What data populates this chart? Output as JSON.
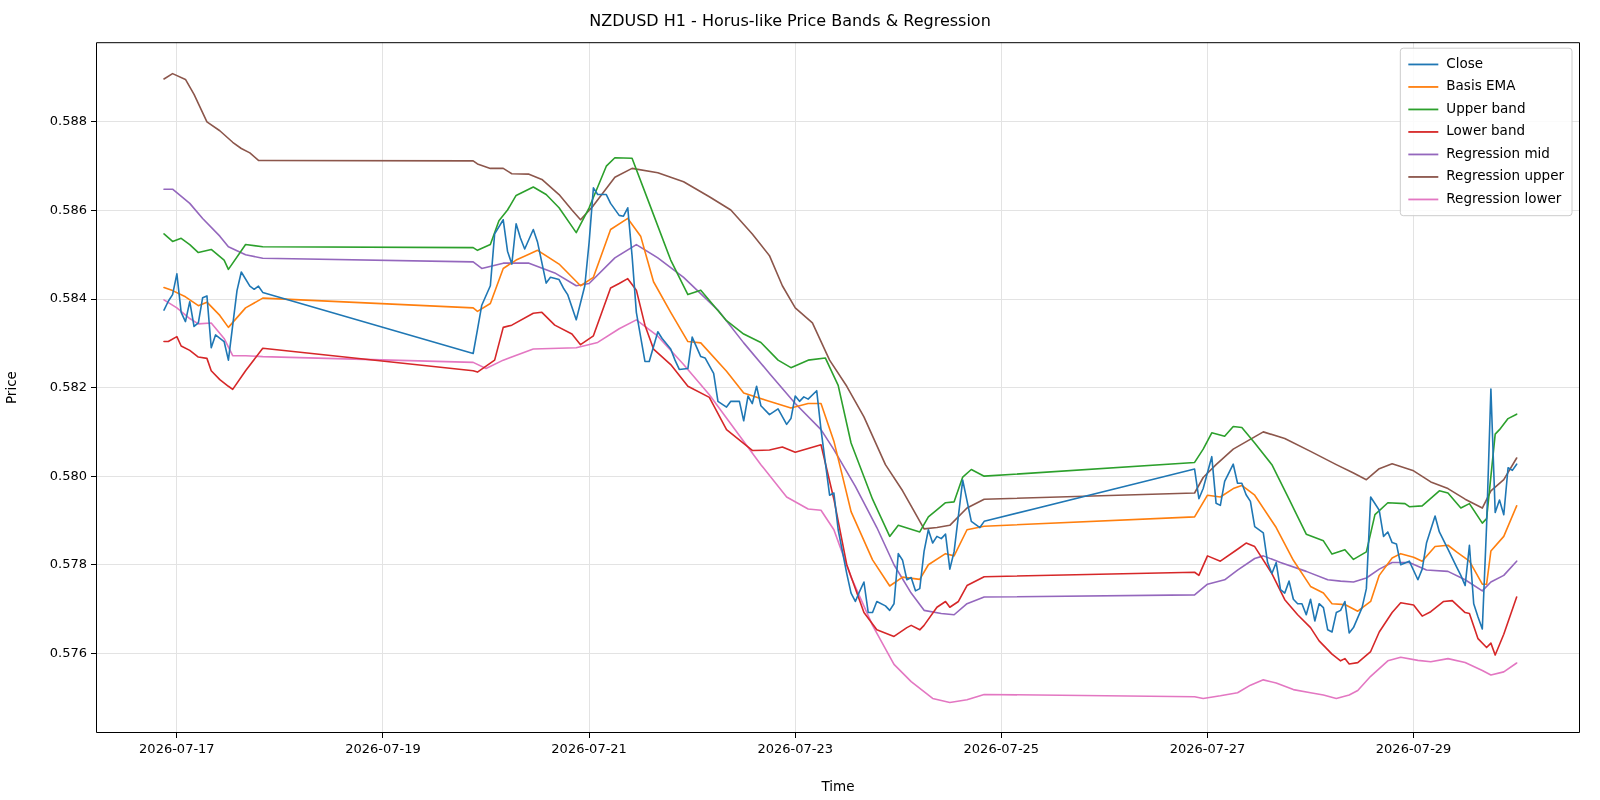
{
  "chart_data": {
    "type": "line",
    "title": "NZDUSD H1 - Horus-like Price Bands & Regression",
    "xlabel": "Time",
    "ylabel": "Price",
    "xlim": [
      "2026-07-16T05:10",
      "2026-07-30T14:45"
    ],
    "xticks": [
      "2026-07-17",
      "2026-07-19",
      "2026-07-21",
      "2026-07-23",
      "2026-07-25",
      "2026-07-27",
      "2026-07-29"
    ],
    "ylim": [
      0.5742,
      0.5898
    ],
    "yticks": [
      0.576,
      0.578,
      {
        "value": 0.58,
        "label": "0.580"
      },
      0.582,
      0.584,
      0.586,
      0.588
    ],
    "grid": true,
    "legend": "top right",
    "marker": "none",
    "line_style": "solid",
    "series": [
      {
        "name": "Close",
        "color": "#1f77b4",
        "x": [
          "2026-07-16T21:00",
          "2026-07-16T22:00",
          "2026-07-16T23:00",
          "2026-07-17T00:00",
          "2026-07-17T01:00",
          "2026-07-17T02:00",
          "2026-07-17T03:00",
          "2026-07-17T04:00",
          "2026-07-17T05:00",
          "2026-07-17T06:00",
          "2026-07-17T07:00",
          "2026-07-17T08:00",
          "2026-07-17T09:00",
          "2026-07-17T11:00",
          "2026-07-17T12:00",
          "2026-07-17T14:00",
          "2026-07-17T15:00",
          "2026-07-17T17:00",
          "2026-07-17T18:00",
          "2026-07-17T19:00",
          "2026-07-17T20:00",
          "2026-07-19T21:00",
          "2026-07-19T22:00",
          "2026-07-19T23:00",
          "2026-07-20T01:00",
          "2026-07-20T02:00",
          "2026-07-20T04:00",
          "2026-07-20T05:00",
          "2026-07-20T06:00",
          "2026-07-20T07:00",
          "2026-07-20T08:00",
          "2026-07-20T09:00",
          "2026-07-20T11:00",
          "2026-07-20T12:00",
          "2026-07-20T14:00",
          "2026-07-20T15:00",
          "2026-07-20T17:00",
          "2026-07-20T18:00",
          "2026-07-20T19:00",
          "2026-07-20T21:00",
          "2026-07-20T23:00",
          "2026-07-21T00:00",
          "2026-07-21T01:00",
          "2026-07-21T02:00",
          "2026-07-21T04:00",
          "2026-07-21T05:00",
          "2026-07-21T07:00",
          "2026-07-21T08:00",
          "2026-07-21T09:00",
          "2026-07-21T10:00",
          "2026-07-21T11:00",
          "2026-07-21T13:00",
          "2026-07-21T14:00",
          "2026-07-21T16:00",
          "2026-07-21T17:00",
          "2026-07-21T19:00",
          "2026-07-21T20:00",
          "2026-07-21T21:00",
          "2026-07-21T23:00",
          "2026-07-22T00:00",
          "2026-07-22T02:00",
          "2026-07-22T03:00",
          "2026-07-22T05:00",
          "2026-07-22T06:00",
          "2026-07-22T08:00",
          "2026-07-22T09:00",
          "2026-07-22T11:00",
          "2026-07-22T12:00",
          "2026-07-22T13:00",
          "2026-07-22T14:00",
          "2026-07-22T15:00",
          "2026-07-22T16:00",
          "2026-07-22T18:00",
          "2026-07-22T20:00",
          "2026-07-22T22:00",
          "2026-07-22T23:00",
          "2026-07-23T00:00",
          "2026-07-23T01:00",
          "2026-07-23T02:00",
          "2026-07-23T03:00",
          "2026-07-23T05:00",
          "2026-07-23T06:00",
          "2026-07-23T08:00",
          "2026-07-23T09:00",
          "2026-07-23T10:00",
          "2026-07-23T12:00",
          "2026-07-23T13:00",
          "2026-07-23T14:00",
          "2026-07-23T15:00",
          "2026-07-23T16:00",
          "2026-07-23T17:00",
          "2026-07-23T18:00",
          "2026-07-23T19:00",
          "2026-07-23T21:00",
          "2026-07-23T22:00",
          "2026-07-23T23:00",
          "2026-07-24T00:00",
          "2026-07-24T01:00",
          "2026-07-24T02:00",
          "2026-07-24T03:00",
          "2026-07-24T04:00",
          "2026-07-24T05:00",
          "2026-07-24T06:00",
          "2026-07-24T07:00",
          "2026-07-24T08:00",
          "2026-07-24T09:00",
          "2026-07-24T10:00",
          "2026-07-24T11:00",
          "2026-07-24T12:00",
          "2026-07-24T13:00",
          "2026-07-24T15:00",
          "2026-07-24T17:00",
          "2026-07-24T19:00",
          "2026-07-24T20:00",
          "2026-07-26T21:00",
          "2026-07-26T22:00",
          "2026-07-26T23:00",
          "2026-07-27T01:00",
          "2026-07-27T02:00",
          "2026-07-27T03:00",
          "2026-07-27T04:00",
          "2026-07-27T06:00",
          "2026-07-27T07:00",
          "2026-07-27T08:00",
          "2026-07-27T09:00",
          "2026-07-27T10:00",
          "2026-07-27T11:00",
          "2026-07-27T13:00",
          "2026-07-27T14:00",
          "2026-07-27T15:00",
          "2026-07-27T16:00",
          "2026-07-27T17:00",
          "2026-07-27T18:00",
          "2026-07-27T19:00",
          "2026-07-27T20:00",
          "2026-07-27T21:00",
          "2026-07-27T22:00",
          "2026-07-27T23:00",
          "2026-07-28T00:00",
          "2026-07-28T01:00",
          "2026-07-28T02:00",
          "2026-07-28T03:00",
          "2026-07-28T04:00",
          "2026-07-28T05:00",
          "2026-07-28T06:00",
          "2026-07-28T07:00",
          "2026-07-28T08:00",
          "2026-07-28T09:00",
          "2026-07-28T10:00",
          "2026-07-28T12:00",
          "2026-07-28T13:00",
          "2026-07-28T14:00",
          "2026-07-28T16:00",
          "2026-07-28T17:00",
          "2026-07-28T18:00",
          "2026-07-28T19:00",
          "2026-07-28T20:00",
          "2026-07-28T21:00",
          "2026-07-28T23:00",
          "2026-07-29T01:00",
          "2026-07-29T02:00",
          "2026-07-29T03:00",
          "2026-07-29T05:00",
          "2026-07-29T06:00",
          "2026-07-29T08:00",
          "2026-07-29T10:00",
          "2026-07-29T11:00",
          "2026-07-29T12:00",
          "2026-07-29T13:00",
          "2026-07-29T14:00",
          "2026-07-29T15:00",
          "2026-07-29T16:00",
          "2026-07-29T17:00",
          "2026-07-29T18:00",
          "2026-07-29T19:00",
          "2026-07-29T20:00",
          "2026-07-29T21:00",
          "2026-07-29T22:00",
          "2026-07-29T23:00",
          "2026-07-30T00:00"
        ],
        "values": [
          0.58375,
          0.58395,
          0.5841,
          0.58457,
          0.5837,
          0.58349,
          0.58394,
          0.58338,
          0.58346,
          0.58403,
          0.58407,
          0.5829,
          0.58319,
          0.58304,
          0.58262,
          0.58419,
          0.58461,
          0.58429,
          0.58422,
          0.58429,
          0.58415,
          0.58277,
          0.58331,
          0.58386,
          0.5843,
          0.58547,
          0.58579,
          0.58508,
          0.58479,
          0.5857,
          0.58538,
          0.58513,
          0.58557,
          0.58528,
          0.58436,
          0.58449,
          0.58444,
          0.58425,
          0.5841,
          0.58353,
          0.5843,
          0.58528,
          0.58651,
          0.58636,
          0.58636,
          0.58616,
          0.58589,
          0.58587,
          0.58606,
          0.58498,
          0.5837,
          0.58259,
          0.58259,
          0.58326,
          0.58311,
          0.58287,
          0.58262,
          0.58241,
          0.58243,
          0.58314,
          0.5827,
          0.58267,
          0.58232,
          0.58169,
          0.58156,
          0.58169,
          0.58169,
          0.58125,
          0.58181,
          0.58164,
          0.58203,
          0.58159,
          0.58139,
          0.58152,
          0.58117,
          0.5813,
          0.58181,
          0.58169,
          0.58179,
          0.58174,
          0.58193,
          0.58105,
          0.57957,
          0.57962,
          0.57879,
          0.5778,
          0.57736,
          0.57717,
          0.5774,
          0.57761,
          0.57692,
          0.57692,
          0.57717,
          0.57707,
          0.57697,
          0.57712,
          0.57825,
          0.5781,
          0.57766,
          0.57771,
          0.57741,
          0.57746,
          0.5783,
          0.57879,
          0.57849,
          0.57864,
          0.57859,
          0.57869,
          0.5779,
          0.5783,
          0.57991,
          0.57898,
          0.57884,
          0.57898,
          0.58016,
          0.57949,
          0.57972,
          0.58044,
          0.57939,
          0.57934,
          0.57988,
          0.58027,
          0.57984,
          0.57984,
          0.57958,
          0.57943,
          0.57886,
          0.57872,
          0.57805,
          0.5778,
          0.57805,
          0.57744,
          0.57736,
          0.57763,
          0.57722,
          0.57712,
          0.57712,
          0.57687,
          0.57722,
          0.57673,
          0.57712,
          0.57703,
          0.57653,
          0.57648,
          0.57692,
          0.57697,
          0.57717,
          0.57646,
          0.57658,
          0.57703,
          0.57746,
          0.57953,
          0.57923,
          0.57864,
          0.57874,
          0.5785,
          0.57847,
          0.578,
          0.57808,
          0.57766,
          0.5779,
          0.57849,
          0.5791,
          0.57874,
          0.57835,
          0.57795,
          0.57776,
          0.57753,
          0.57844,
          0.57712,
          0.57682,
          0.57655,
          0.57889,
          0.58197,
          0.57918,
          0.57946,
          0.57913,
          0.58019,
          0.58013,
          0.58027
        ]
      },
      {
        "name": "Basis EMA",
        "color": "#ff7f0e",
        "x": [
          "2026-07-16T21:00",
          "2026-07-16T23:00",
          "2026-07-17T02:00",
          "2026-07-17T05:00",
          "2026-07-17T07:00",
          "2026-07-17T10:00",
          "2026-07-17T12:00",
          "2026-07-17T16:00",
          "2026-07-17T20:00",
          "2026-07-19T21:00",
          "2026-07-19T22:00",
          "2026-07-20T01:00",
          "2026-07-20T04:00",
          "2026-07-20T07:00",
          "2026-07-20T12:00",
          "2026-07-20T17:00",
          "2026-07-20T22:00",
          "2026-07-21T01:00",
          "2026-07-21T05:00",
          "2026-07-21T09:00",
          "2026-07-21T12:00",
          "2026-07-21T15:00",
          "2026-07-21T19:00",
          "2026-07-21T23:00",
          "2026-07-22T02:00",
          "2026-07-22T08:00",
          "2026-07-22T12:00",
          "2026-07-22T17:00",
          "2026-07-22T23:00",
          "2026-07-23T03:00",
          "2026-07-23T06:00",
          "2026-07-23T09:00",
          "2026-07-23T11:00",
          "2026-07-23T13:00",
          "2026-07-23T18:00",
          "2026-07-23T22:00",
          "2026-07-24T01:00",
          "2026-07-24T05:00",
          "2026-07-24T07:00",
          "2026-07-24T11:00",
          "2026-07-24T13:00",
          "2026-07-24T16:00",
          "2026-07-24T20:00",
          "2026-07-26T21:00",
          "2026-07-27T00:00",
          "2026-07-27T03:00",
          "2026-07-27T06:00",
          "2026-07-27T08:00",
          "2026-07-27T11:00",
          "2026-07-27T16:00",
          "2026-07-27T20:00",
          "2026-07-28T00:00",
          "2026-07-28T03:00",
          "2026-07-28T05:00",
          "2026-07-28T08:00",
          "2026-07-28T11:00",
          "2026-07-28T14:00",
          "2026-07-28T16:00",
          "2026-07-28T19:00",
          "2026-07-28T21:00",
          "2026-07-29T00:00",
          "2026-07-29T02:00",
          "2026-07-29T05:00",
          "2026-07-29T08:00",
          "2026-07-29T10:00",
          "2026-07-29T13:00",
          "2026-07-29T16:00",
          "2026-07-29T17:00",
          "2026-07-29T18:00",
          "2026-07-29T21:00",
          "2026-07-30T00:00"
        ],
        "values": [
          0.58426,
          0.58419,
          0.58405,
          0.58385,
          0.58393,
          0.58363,
          0.58336,
          0.5838,
          0.58402,
          0.5838,
          0.58372,
          0.5839,
          0.58469,
          0.58488,
          0.5851,
          0.58479,
          0.5843,
          0.58449,
          0.58557,
          0.58582,
          0.58542,
          0.58439,
          0.5837,
          0.58304,
          0.58301,
          0.58237,
          0.58188,
          0.58172,
          0.58154,
          0.58164,
          0.58164,
          0.58079,
          0.58,
          0.5792,
          0.57811,
          0.57752,
          0.57772,
          0.57767,
          0.578,
          0.57825,
          0.5782,
          0.57879,
          0.57887,
          0.57908,
          0.57957,
          0.57953,
          0.57972,
          0.57979,
          0.57957,
          0.57884,
          0.5781,
          0.57751,
          0.57736,
          0.57712,
          0.5771,
          0.57695,
          0.57717,
          0.57776,
          0.57815,
          0.57825,
          0.57817,
          0.57808,
          0.57841,
          0.57844,
          0.57829,
          0.57808,
          0.57756,
          0.57756,
          0.57831,
          0.57864,
          0.57933
        ]
      },
      {
        "name": "Upper band",
        "color": "#2ca02c",
        "x": [
          "2026-07-16T21:00",
          "2026-07-16T23:00",
          "2026-07-17T01:00",
          "2026-07-17T03:00",
          "2026-07-17T05:00",
          "2026-07-17T08:00",
          "2026-07-17T11:00",
          "2026-07-17T12:00",
          "2026-07-17T16:00",
          "2026-07-17T20:00",
          "2026-07-19T21:00",
          "2026-07-19T22:00",
          "2026-07-20T01:00",
          "2026-07-20T03:00",
          "2026-07-20T05:00",
          "2026-07-20T07:00",
          "2026-07-20T11:00",
          "2026-07-20T14:00",
          "2026-07-20T17:00",
          "2026-07-20T21:00",
          "2026-07-21T00:00",
          "2026-07-21T04:00",
          "2026-07-21T06:00",
          "2026-07-21T10:00",
          "2026-07-21T14:00",
          "2026-07-21T19:00",
          "2026-07-21T23:00",
          "2026-07-22T02:00",
          "2026-07-22T08:00",
          "2026-07-22T12:00",
          "2026-07-22T16:00",
          "2026-07-22T20:00",
          "2026-07-22T23:00",
          "2026-07-23T03:00",
          "2026-07-23T07:00",
          "2026-07-23T10:00",
          "2026-07-23T13:00",
          "2026-07-23T18:00",
          "2026-07-23T22:00",
          "2026-07-24T00:00",
          "2026-07-24T05:00",
          "2026-07-24T07:00",
          "2026-07-24T11:00",
          "2026-07-24T13:00",
          "2026-07-24T15:00",
          "2026-07-24T17:00",
          "2026-07-24T20:00",
          "2026-07-26T21:00",
          "2026-07-26T23:00",
          "2026-07-27T01:00",
          "2026-07-27T04:00",
          "2026-07-27T06:00",
          "2026-07-27T08:00",
          "2026-07-27T11:00",
          "2026-07-27T15:00",
          "2026-07-27T19:00",
          "2026-07-27T23:00",
          "2026-07-28T03:00",
          "2026-07-28T05:00",
          "2026-07-28T08:00",
          "2026-07-28T10:00",
          "2026-07-28T13:00",
          "2026-07-28T15:00",
          "2026-07-28T18:00",
          "2026-07-28T22:00",
          "2026-07-28T23:00",
          "2026-07-29T02:00",
          "2026-07-29T06:00",
          "2026-07-29T08:00",
          "2026-07-29T11:00",
          "2026-07-29T13:00",
          "2026-07-29T16:00",
          "2026-07-29T17:00",
          "2026-07-29T19:00",
          "2026-07-29T20:00",
          "2026-07-29T22:00",
          "2026-07-30T00:00"
        ],
        "values": [
          0.58547,
          0.5853,
          0.58537,
          0.58523,
          0.58505,
          0.58512,
          0.58488,
          0.58467,
          0.58523,
          0.58518,
          0.58516,
          0.5851,
          0.58523,
          0.58577,
          0.58601,
          0.58634,
          0.58653,
          0.58636,
          0.58606,
          0.5855,
          0.58606,
          0.587,
          0.58719,
          0.58718,
          0.58616,
          0.58488,
          0.5841,
          0.5842,
          0.58351,
          0.58321,
          0.58302,
          0.58262,
          0.58245,
          0.58262,
          0.58267,
          0.58205,
          0.58075,
          0.57948,
          0.57864,
          0.57889,
          0.57874,
          0.57908,
          0.5794,
          0.57942,
          0.57998,
          0.58015,
          0.58,
          0.58031,
          0.58061,
          0.58098,
          0.5809,
          0.58112,
          0.5811,
          0.58075,
          0.58026,
          0.57948,
          0.57869,
          0.57854,
          0.57824,
          0.57834,
          0.57812,
          0.57829,
          0.57913,
          0.5794,
          0.57938,
          0.57931,
          0.57933,
          0.57967,
          0.57962,
          0.57928,
          0.57938,
          0.57894,
          0.57904,
          0.58095,
          0.58105,
          0.5813,
          0.5814
        ]
      },
      {
        "name": "Lower band",
        "color": "#d62728",
        "x": [
          "2026-07-16T21:00",
          "2026-07-16T22:00",
          "2026-07-17T00:00",
          "2026-07-17T01:00",
          "2026-07-17T03:00",
          "2026-07-17T05:00",
          "2026-07-17T07:00",
          "2026-07-17T08:00",
          "2026-07-17T10:00",
          "2026-07-17T12:00",
          "2026-07-17T13:00",
          "2026-07-17T16:00",
          "2026-07-17T20:00",
          "2026-07-19T21:00",
          "2026-07-19T22:00",
          "2026-07-20T02:00",
          "2026-07-20T04:00",
          "2026-07-20T06:00",
          "2026-07-20T11:00",
          "2026-07-20T13:00",
          "2026-07-20T16:00",
          "2026-07-20T20:00",
          "2026-07-20T22:00",
          "2026-07-21T01:00",
          "2026-07-21T05:00",
          "2026-07-21T07:00",
          "2026-07-21T09:00",
          "2026-07-21T11:00",
          "2026-07-21T13:00",
          "2026-07-21T15:00",
          "2026-07-21T19:00",
          "2026-07-21T23:00",
          "2026-07-22T04:00",
          "2026-07-22T08:00",
          "2026-07-22T14:00",
          "2026-07-22T18:00",
          "2026-07-22T21:00",
          "2026-07-23T00:00",
          "2026-07-23T06:00",
          "2026-07-23T09:00",
          "2026-07-23T12:00",
          "2026-07-23T16:00",
          "2026-07-23T19:00",
          "2026-07-23T23:00",
          "2026-07-24T02:00",
          "2026-07-24T03:00",
          "2026-07-24T05:00",
          "2026-07-24T06:00",
          "2026-07-24T09:00",
          "2026-07-24T11:00",
          "2026-07-24T12:00",
          "2026-07-24T14:00",
          "2026-07-24T16:00",
          "2026-07-24T20:00",
          "2026-07-26T21:00",
          "2026-07-26T22:00",
          "2026-07-27T00:00",
          "2026-07-27T03:00",
          "2026-07-27T07:00",
          "2026-07-27T09:00",
          "2026-07-27T11:00",
          "2026-07-27T15:00",
          "2026-07-27T18:00",
          "2026-07-27T21:00",
          "2026-07-28T00:00",
          "2026-07-28T02:00",
          "2026-07-28T05:00",
          "2026-07-28T07:00",
          "2026-07-28T08:00",
          "2026-07-28T09:00",
          "2026-07-28T11:00",
          "2026-07-28T14:00",
          "2026-07-28T16:00",
          "2026-07-28T19:00",
          "2026-07-28T21:00",
          "2026-07-29T00:00",
          "2026-07-29T02:00",
          "2026-07-29T04:00",
          "2026-07-29T07:00",
          "2026-07-29T09:00",
          "2026-07-29T12:00",
          "2026-07-29T13:00",
          "2026-07-29T15:00",
          "2026-07-29T17:00",
          "2026-07-29T18:00",
          "2026-07-29T19:00",
          "2026-07-29T21:00",
          "2026-07-30T00:00"
        ],
        "values": [
          0.58304,
          0.58304,
          0.58315,
          0.58294,
          0.58284,
          0.58269,
          0.58266,
          0.58238,
          0.58218,
          0.58203,
          0.58196,
          0.58238,
          0.58289,
          0.58238,
          0.58235,
          0.58262,
          0.58336,
          0.58341,
          0.58368,
          0.5837,
          0.58341,
          0.58321,
          0.58297,
          0.58317,
          0.58425,
          0.58435,
          0.58446,
          0.5842,
          0.58341,
          0.58287,
          0.58252,
          0.58203,
          0.58178,
          0.58105,
          0.58058,
          0.58059,
          0.58066,
          0.58054,
          0.58071,
          0.57948,
          0.578,
          0.57692,
          0.57653,
          0.57638,
          0.57658,
          0.57663,
          0.57653,
          0.57663,
          0.57704,
          0.57717,
          0.57704,
          0.57717,
          0.57753,
          0.57773,
          0.57783,
          0.57776,
          0.5782,
          0.57808,
          0.57835,
          0.57849,
          0.57841,
          0.5778,
          0.57721,
          0.57687,
          0.57658,
          0.57628,
          0.57598,
          0.57583,
          0.57588,
          0.57576,
          0.57579,
          0.57604,
          0.57648,
          0.57692,
          0.57714,
          0.57709,
          0.57684,
          0.57694,
          0.57717,
          0.57719,
          0.57692,
          0.5769,
          0.57633,
          0.57613,
          0.57623,
          0.57596,
          0.57643,
          0.57727
        ]
      },
      {
        "name": "Regression mid",
        "color": "#9467bd",
        "x": [
          "2026-07-16T21:00",
          "2026-07-16T23:00",
          "2026-07-17T03:00",
          "2026-07-17T06:00",
          "2026-07-17T10:00",
          "2026-07-17T12:00",
          "2026-07-17T16:00",
          "2026-07-17T20:00",
          "2026-07-19T21:00",
          "2026-07-19T23:00",
          "2026-07-20T04:00",
          "2026-07-20T10:00",
          "2026-07-20T16:00",
          "2026-07-20T21:00",
          "2026-07-21T00:00",
          "2026-07-21T06:00",
          "2026-07-21T11:00",
          "2026-07-21T16:00",
          "2026-07-21T22:00",
          "2026-07-22T06:00",
          "2026-07-22T12:00",
          "2026-07-22T18:00",
          "2026-07-23T00:00",
          "2026-07-23T06:00",
          "2026-07-23T09:00",
          "2026-07-23T14:00",
          "2026-07-23T19:00",
          "2026-07-23T23:00",
          "2026-07-24T03:00",
          "2026-07-24T06:00",
          "2026-07-24T10:00",
          "2026-07-24T13:00",
          "2026-07-24T16:00",
          "2026-07-24T20:00",
          "2026-07-26T21:00",
          "2026-07-27T00:00",
          "2026-07-27T04:00",
          "2026-07-27T07:00",
          "2026-07-27T11:00",
          "2026-07-27T13:00",
          "2026-07-27T17:00",
          "2026-07-27T23:00",
          "2026-07-28T04:00",
          "2026-07-28T07:00",
          "2026-07-28T10:00",
          "2026-07-28T13:00",
          "2026-07-28T16:00",
          "2026-07-28T19:00",
          "2026-07-28T23:00",
          "2026-07-29T03:00",
          "2026-07-29T08:00",
          "2026-07-29T12:00",
          "2026-07-29T16:00",
          "2026-07-29T18:00",
          "2026-07-29T21:00",
          "2026-07-30T00:00"
        ],
        "values": [
          0.58648,
          0.58648,
          0.58616,
          0.58582,
          0.58542,
          0.58518,
          0.585,
          0.58492,
          0.58484,
          0.58469,
          0.58481,
          0.58481,
          0.58459,
          0.5843,
          0.58435,
          0.58493,
          0.58523,
          0.58493,
          0.58449,
          0.58375,
          0.58301,
          0.58232,
          0.58164,
          0.58105,
          0.5806,
          0.57977,
          0.57884,
          0.578,
          0.57736,
          0.57697,
          0.5769,
          0.57687,
          0.57712,
          0.57727,
          0.57732,
          0.57756,
          0.57766,
          0.57788,
          0.57814,
          0.5782,
          0.57805,
          0.57785,
          0.57766,
          0.57763,
          0.57761,
          0.5777,
          0.5779,
          0.57805,
          0.57805,
          0.57788,
          0.57785,
          0.57766,
          0.57741,
          0.57761,
          0.57776,
          0.57808
        ]
      },
      {
        "name": "Regression upper",
        "color": "#8c564b",
        "x": [
          "2026-07-16T21:00",
          "2026-07-16T23:00",
          "2026-07-17T02:00",
          "2026-07-17T04:00",
          "2026-07-17T07:00",
          "2026-07-17T10:00",
          "2026-07-17T13:00",
          "2026-07-17T15:00",
          "2026-07-17T17:00",
          "2026-07-17T19:00",
          "2026-07-17T20:00",
          "2026-07-19T21:00",
          "2026-07-19T22:00",
          "2026-07-20T01:00",
          "2026-07-20T04:00",
          "2026-07-20T06:00",
          "2026-07-20T10:00",
          "2026-07-20T13:00",
          "2026-07-20T17:00",
          "2026-07-20T20:00",
          "2026-07-20T22:00",
          "2026-07-21T01:00",
          "2026-07-21T06:00",
          "2026-07-21T10:00",
          "2026-07-21T16:00",
          "2026-07-21T22:00",
          "2026-07-22T04:00",
          "2026-07-22T09:00",
          "2026-07-22T14:00",
          "2026-07-22T18:00",
          "2026-07-22T21:00",
          "2026-07-23T00:00",
          "2026-07-23T04:00",
          "2026-07-23T08:00",
          "2026-07-23T12:00",
          "2026-07-23T16:00",
          "2026-07-23T21:00",
          "2026-07-24T01:00",
          "2026-07-24T06:00",
          "2026-07-24T09:00",
          "2026-07-24T12:00",
          "2026-07-24T16:00",
          "2026-07-24T20:00",
          "2026-07-26T21:00",
          "2026-07-26T23:00",
          "2026-07-27T02:00",
          "2026-07-27T06:00",
          "2026-07-27T13:00",
          "2026-07-27T18:00",
          "2026-07-28T00:00",
          "2026-07-28T06:00",
          "2026-07-28T10:00",
          "2026-07-28T13:00",
          "2026-07-28T16:00",
          "2026-07-28T19:00",
          "2026-07-29T00:00",
          "2026-07-29T04:00",
          "2026-07-29T08:00",
          "2026-07-29T12:00",
          "2026-07-29T16:00",
          "2026-07-29T18:00",
          "2026-07-29T21:00",
          "2026-07-30T00:00"
        ],
        "values": [
          0.58897,
          0.58909,
          0.58896,
          0.58862,
          0.588,
          0.5878,
          0.58754,
          0.5874,
          0.5873,
          0.58713,
          0.58713,
          0.58712,
          0.58705,
          0.58695,
          0.58695,
          0.58683,
          0.58682,
          0.5867,
          0.58636,
          0.58601,
          0.58579,
          0.58611,
          0.58675,
          0.58695,
          0.58685,
          0.58665,
          0.58631,
          0.58601,
          0.58547,
          0.58498,
          0.5843,
          0.5838,
          0.58346,
          0.58262,
          0.58203,
          0.58134,
          0.58026,
          0.57967,
          0.57881,
          0.57884,
          0.57889,
          0.57928,
          0.57948,
          0.57962,
          0.57997,
          0.58026,
          0.58061,
          0.581,
          0.58085,
          0.58056,
          0.58026,
          0.58007,
          0.57992,
          0.58017,
          0.58028,
          0.58012,
          0.57987,
          0.57972,
          0.57948,
          0.57928,
          0.57967,
          0.57992,
          0.58041
        ]
      },
      {
        "name": "Regression lower",
        "color": "#e377c2",
        "x": [
          "2026-07-16T21:00",
          "2026-07-17T00:00",
          "2026-07-17T03:00",
          "2026-07-17T05:00",
          "2026-07-17T08:00",
          "2026-07-17T11:00",
          "2026-07-17T13:00",
          "2026-07-17T16:00",
          "2026-07-17T20:00",
          "2026-07-19T21:00",
          "2026-07-20T00:00",
          "2026-07-20T04:00",
          "2026-07-20T11:00",
          "2026-07-20T21:00",
          "2026-07-21T02:00",
          "2026-07-21T07:00",
          "2026-07-21T11:00",
          "2026-07-21T16:00",
          "2026-07-21T22:00",
          "2026-07-22T04:00",
          "2026-07-22T10:00",
          "2026-07-22T16:00",
          "2026-07-22T22:00",
          "2026-07-23T03:00",
          "2026-07-23T06:00",
          "2026-07-23T09:00",
          "2026-07-23T13:00",
          "2026-07-23T18:00",
          "2026-07-23T23:00",
          "2026-07-24T03:00",
          "2026-07-24T08:00",
          "2026-07-24T12:00",
          "2026-07-24T16:00",
          "2026-07-24T20:00",
          "2026-07-26T21:00",
          "2026-07-26T23:00",
          "2026-07-27T03:00",
          "2026-07-27T07:00",
          "2026-07-27T10:00",
          "2026-07-27T13:00",
          "2026-07-27T16:00",
          "2026-07-27T20:00",
          "2026-07-28T00:00",
          "2026-07-28T03:00",
          "2026-07-28T06:00",
          "2026-07-28T09:00",
          "2026-07-28T11:00",
          "2026-07-28T14:00",
          "2026-07-28T18:00",
          "2026-07-28T21:00",
          "2026-07-29T01:00",
          "2026-07-29T04:00",
          "2026-07-29T08:00",
          "2026-07-29T12:00",
          "2026-07-29T16:00",
          "2026-07-29T18:00",
          "2026-07-29T21:00",
          "2026-07-30T00:00"
        ],
        "values": [
          0.58398,
          0.5838,
          0.58356,
          0.58344,
          0.58346,
          0.58311,
          0.58272,
          0.58272,
          0.5827,
          0.58257,
          0.58243,
          0.58262,
          0.58287,
          0.5829,
          0.58302,
          0.58333,
          0.58353,
          0.58316,
          0.58252,
          0.58184,
          0.58105,
          0.58026,
          0.57953,
          0.57926,
          0.57923,
          0.57879,
          0.57772,
          0.57663,
          0.57575,
          0.57536,
          0.57498,
          0.57489,
          0.57495,
          0.57507,
          0.57502,
          0.57498,
          0.57504,
          0.57511,
          0.57528,
          0.5754,
          0.57533,
          0.57518,
          0.57511,
          0.57506,
          0.57498,
          0.57506,
          0.57516,
          0.57548,
          0.57583,
          0.57591,
          0.57584,
          0.57581,
          0.57588,
          0.57579,
          0.57561,
          0.57551,
          0.57558,
          0.57578
        ]
      }
    ]
  }
}
